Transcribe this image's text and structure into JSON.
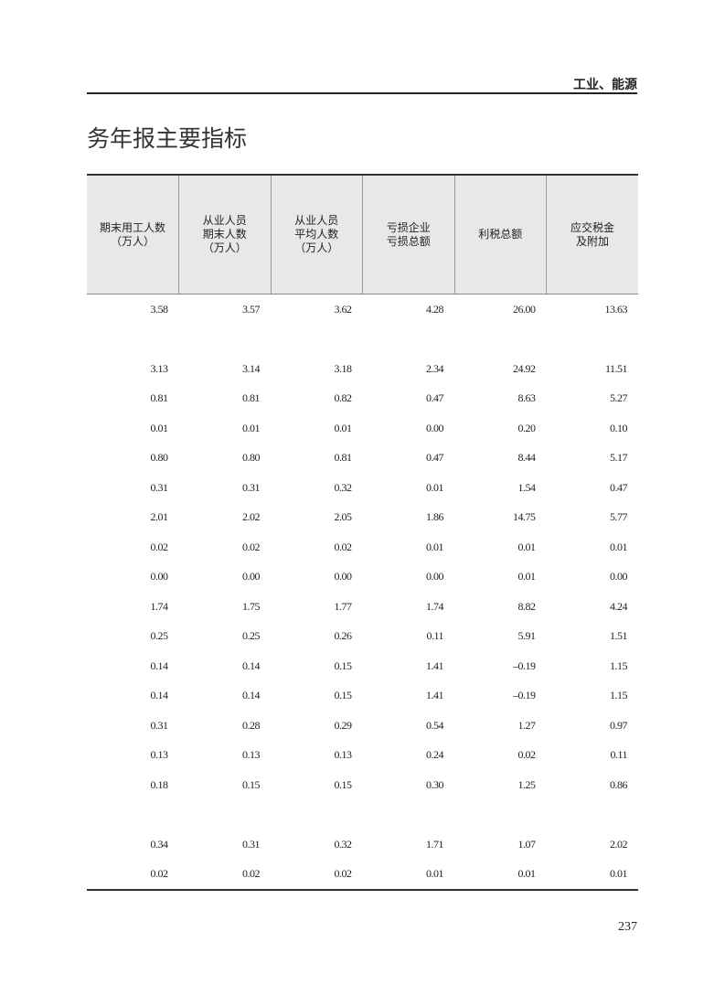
{
  "header": {
    "section": "工业、能源"
  },
  "title": "务年报主要指标",
  "table": {
    "columns": [
      "期末用工人数\n（万人）",
      "从业人员\n期末人数\n（万人）",
      "从业人员\n平均人数\n（万人）",
      "亏损企业\n亏损总额",
      "利税总额",
      "应交税金\n及附加"
    ],
    "rows": [
      [
        "3.58",
        "3.57",
        "3.62",
        "4.28",
        "26.00",
        "13.63"
      ],
      [
        "",
        "",
        "",
        "",
        "",
        ""
      ],
      [
        "3.13",
        "3.14",
        "3.18",
        "2.34",
        "24.92",
        "11.51"
      ],
      [
        "0.81",
        "0.81",
        "0.82",
        "0.47",
        "8.63",
        "5.27"
      ],
      [
        "0.01",
        "0.01",
        "0.01",
        "0.00",
        "0.20",
        "0.10"
      ],
      [
        "0.80",
        "0.80",
        "0.81",
        "0.47",
        "8.44",
        "5.17"
      ],
      [
        "0.31",
        "0.31",
        "0.32",
        "0.01",
        "1.54",
        "0.47"
      ],
      [
        "2.01",
        "2.02",
        "2.05",
        "1.86",
        "14.75",
        "5.77"
      ],
      [
        "0.02",
        "0.02",
        "0.02",
        "0.01",
        "0.01",
        "0.01"
      ],
      [
        "0.00",
        "0.00",
        "0.00",
        "0.00",
        "0.01",
        "0.00"
      ],
      [
        "1.74",
        "1.75",
        "1.77",
        "1.74",
        "8.82",
        "4.24"
      ],
      [
        "0.25",
        "0.25",
        "0.26",
        "0.11",
        "5.91",
        "1.51"
      ],
      [
        "0.14",
        "0.14",
        "0.15",
        "1.41",
        "–0.19",
        "1.15"
      ],
      [
        "0.14",
        "0.14",
        "0.15",
        "1.41",
        "–0.19",
        "1.15"
      ],
      [
        "0.31",
        "0.28",
        "0.29",
        "0.54",
        "1.27",
        "0.97"
      ],
      [
        "0.13",
        "0.13",
        "0.13",
        "0.24",
        "0.02",
        "0.11"
      ],
      [
        "0.18",
        "0.15",
        "0.15",
        "0.30",
        "1.25",
        "0.86"
      ],
      [
        "",
        "",
        "",
        "",
        "",
        ""
      ],
      [
        "0.34",
        "0.31",
        "0.32",
        "1.71",
        "1.07",
        "2.02"
      ],
      [
        "0.02",
        "0.02",
        "0.02",
        "0.01",
        "0.01",
        "0.01"
      ]
    ]
  },
  "page_number": "237"
}
